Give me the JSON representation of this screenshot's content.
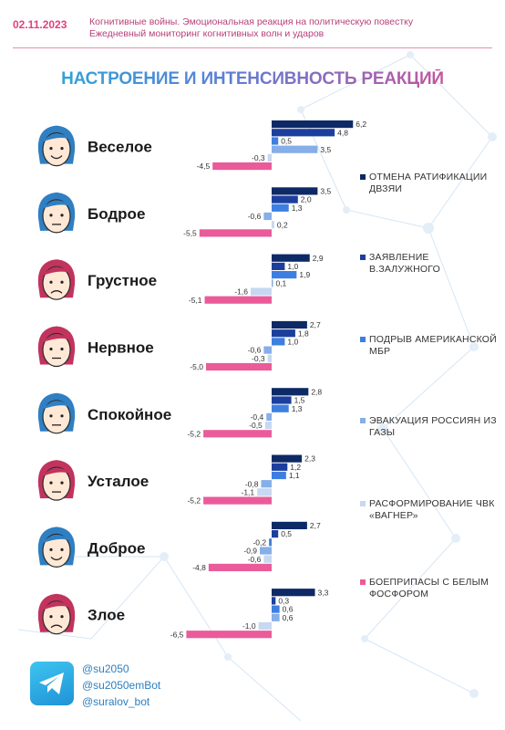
{
  "header": {
    "date": "02.11.2023",
    "line1": "Когнитивные войны. Эмоциональная реакция на политическую повестку",
    "line2": "Ежедневный мониторинг когнитивных волн и ударов"
  },
  "colors": {
    "accent_pink": "#e0417c",
    "series": [
      "#0d2a66",
      "#1c3f9e",
      "#3d7fe0",
      "#86aee8",
      "#c6d8f2",
      "#ea5b9a"
    ]
  },
  "chart_data": {
    "type": "bar",
    "orientation": "horizontal",
    "title": "НАСТРОЕНИЕ И ИНТЕНСИВНОСТЬ РЕАКЦИЙ",
    "categories": [
      "Веселое",
      "Бодрое",
      "Грустное",
      "Нервное",
      "Спокойное",
      "Усталое",
      "Доброе",
      "Злое"
    ],
    "series": [
      {
        "name": "ОТМЕНА РАТИФИКАЦИИ ДВЗЯИ",
        "color": "#0d2a66",
        "values": [
          6.2,
          3.5,
          2.9,
          2.7,
          2.8,
          2.3,
          2.7,
          3.3
        ]
      },
      {
        "name": "ЗАЯВЛЕНИЕ В.ЗАЛУЖНОГО",
        "color": "#1c3f9e",
        "values": [
          4.8,
          2.0,
          1.0,
          1.8,
          1.5,
          1.2,
          0.5,
          0.3
        ]
      },
      {
        "name": "ПОДРЫВ АМЕРИКАНСКОЙ МБР",
        "color": "#3d7fe0",
        "values": [
          0.5,
          1.3,
          1.9,
          1.0,
          1.3,
          1.1,
          -0.2,
          0.6
        ]
      },
      {
        "name": "ЭВАКУАЦИЯ РОССИЯН ИЗ ГАЗЫ",
        "color": "#86aee8",
        "values": [
          3.5,
          -0.6,
          0.1,
          -0.6,
          -0.4,
          -0.8,
          -0.9,
          0.6
        ]
      },
      {
        "name": "РАСФОРМИРОВАНИЕ ЧВК «ВАГНЕР»",
        "color": "#c6d8f2",
        "values": [
          -0.3,
          0.2,
          -1.6,
          -0.3,
          -0.5,
          -1.1,
          -0.6,
          -1.0
        ]
      },
      {
        "name": "БОЕПРИПАСЫ С БЕЛЫМ ФОСФОРОМ",
        "color": "#ea5b9a",
        "values": [
          -4.5,
          -5.5,
          -5.1,
          -5.0,
          -5.2,
          -5.2,
          -4.8,
          -6.5
        ]
      }
    ],
    "face_colors": [
      "#2f7fc2",
      "#2f7fc2",
      "#c2335e",
      "#c2335e",
      "#2f7fc2",
      "#c2335e",
      "#2f7fc2",
      "#c2335e"
    ]
  },
  "social": {
    "handles": [
      "@su2050",
      "@su2050emBot",
      "@suralov_bot"
    ],
    "icon": "telegram-icon"
  }
}
